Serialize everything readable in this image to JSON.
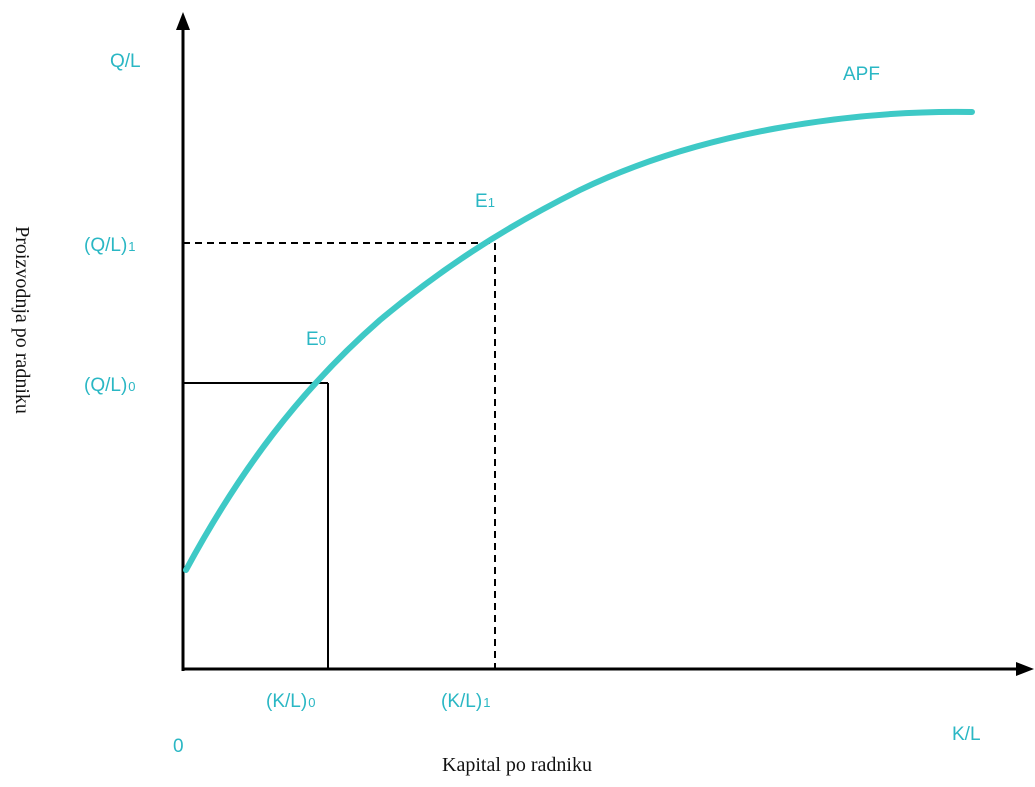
{
  "colors": {
    "curve": "#3ec9c6",
    "label": "#2ab7c4",
    "axis": "#000000"
  },
  "labels": {
    "y_axis_unit": "Q/L",
    "x_axis_unit": "K/L",
    "origin": "0",
    "curve_name": "APF",
    "y_axis_title": "Proizvodnja po radniku",
    "x_axis_title": "Kapital po radniku",
    "point_e0": {
      "base": "E",
      "sub": "0"
    },
    "point_e1": {
      "base": "E",
      "sub": "1"
    },
    "ql0": {
      "base": "(Q/L)",
      "sub": "0"
    },
    "ql1": {
      "base": "(Q/L)",
      "sub": "1"
    },
    "kl0": {
      "base": "(K/L)",
      "sub": "0"
    },
    "kl1": {
      "base": "(K/L)",
      "sub": "1"
    }
  }
}
